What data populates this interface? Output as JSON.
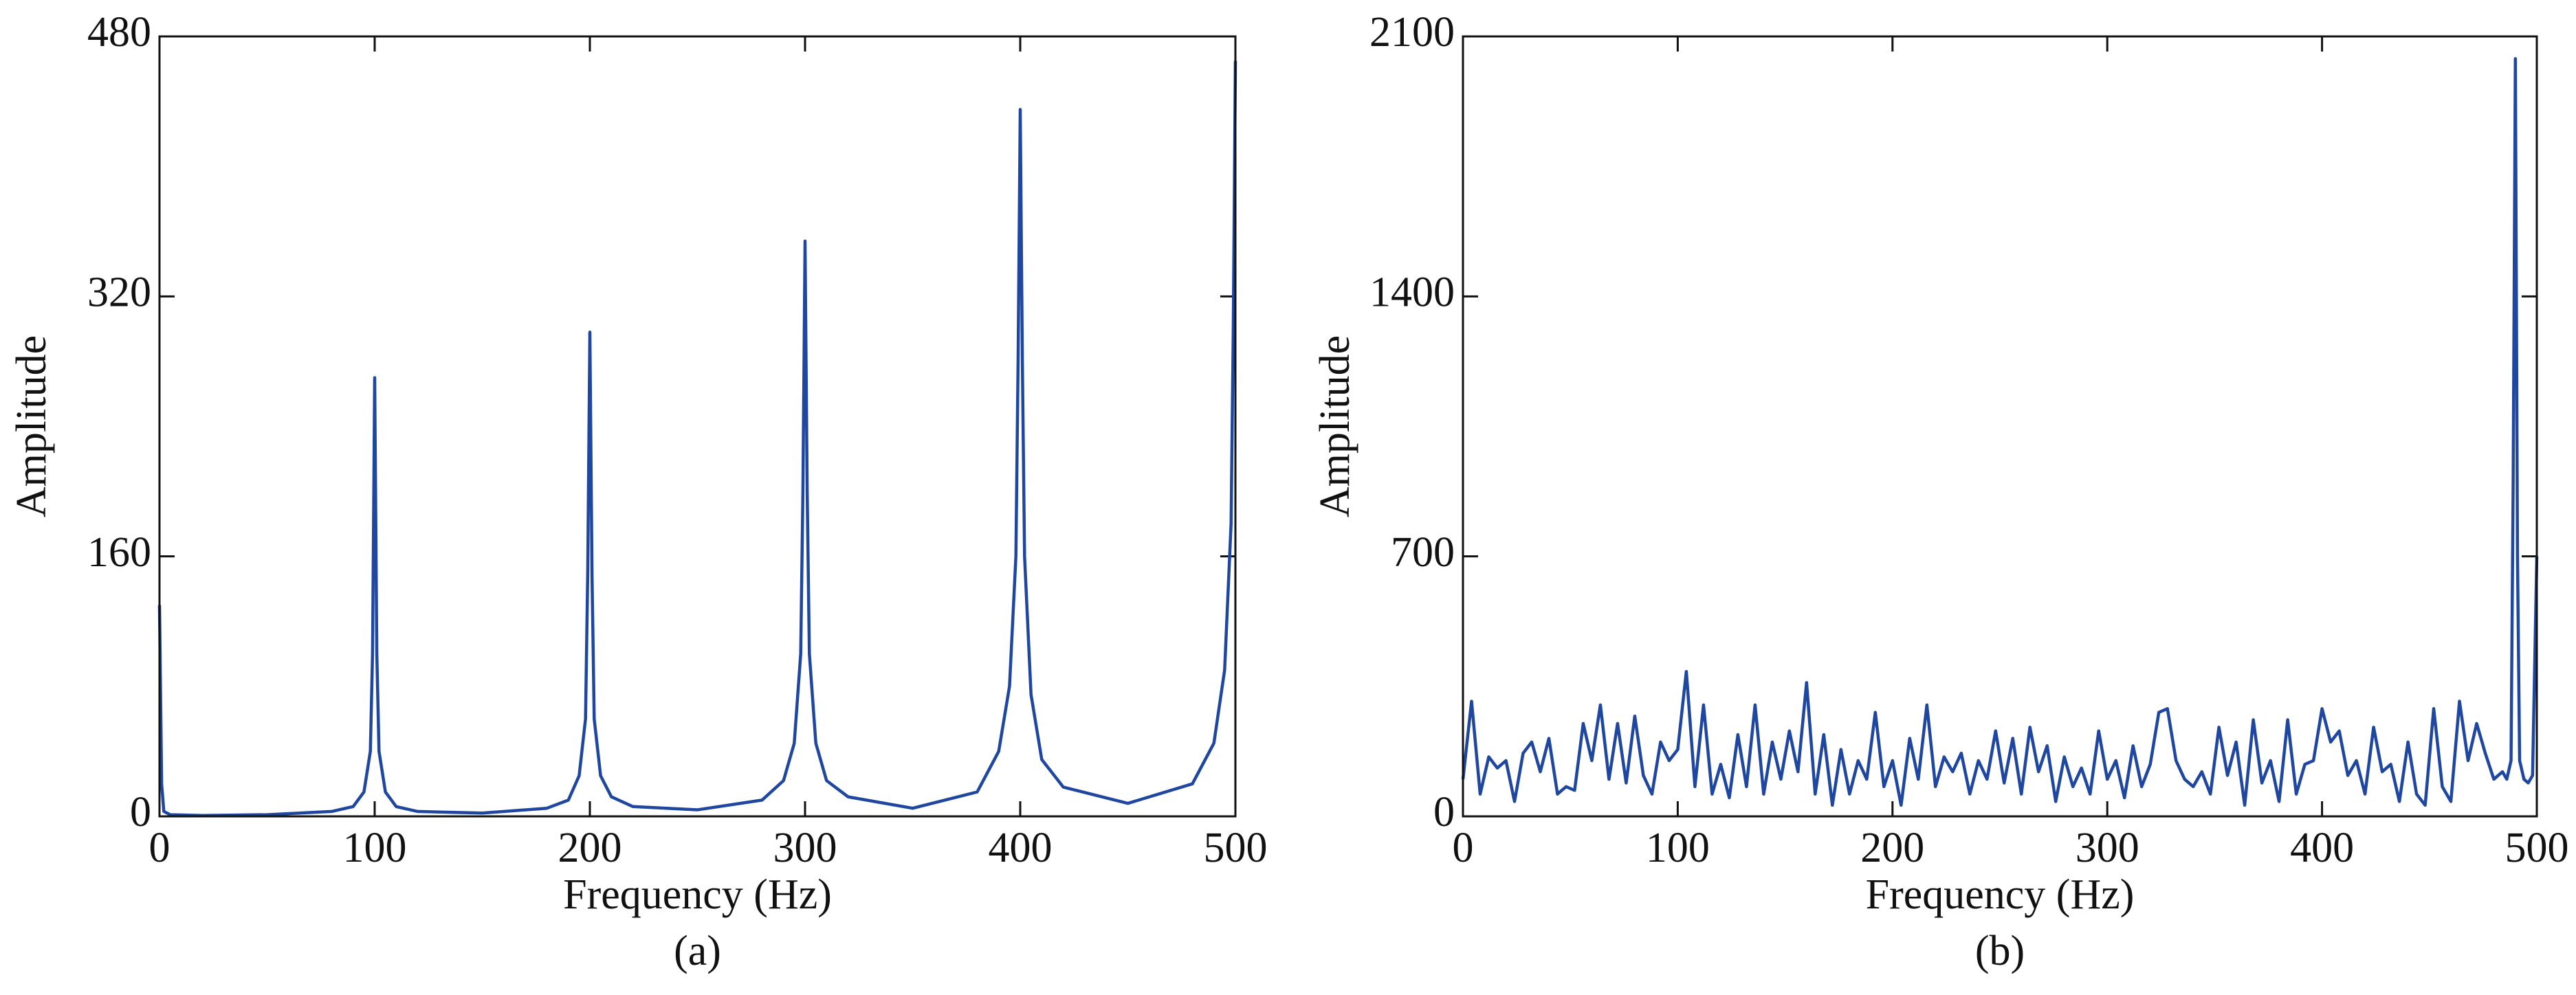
{
  "chart_data": [
    {
      "type": "line",
      "caption": "(a)",
      "xlabel": "Frequency (Hz)",
      "ylabel": "Amplitude",
      "color": "#1f47a0",
      "xlim": [
        0,
        500
      ],
      "ylim": [
        0,
        480
      ],
      "xticks": [
        0,
        100,
        200,
        300,
        400,
        500
      ],
      "yticks": [
        0,
        160,
        320,
        480
      ],
      "x": [
        0,
        1,
        2,
        5,
        20,
        50,
        80,
        90,
        95,
        98,
        99,
        100,
        101,
        102,
        105,
        110,
        120,
        150,
        180,
        190,
        195,
        198,
        199,
        200,
        201,
        202,
        205,
        210,
        220,
        250,
        280,
        290,
        295,
        298,
        299,
        300,
        301,
        302,
        305,
        310,
        320,
        350,
        380,
        390,
        395,
        398,
        399,
        400,
        401,
        402,
        405,
        410,
        420,
        450,
        480,
        490,
        495,
        498,
        499,
        500
      ],
      "values": [
        130,
        20,
        3,
        1,
        0.5,
        1,
        3,
        6,
        15,
        40,
        100,
        270,
        100,
        40,
        15,
        6,
        3,
        2,
        5,
        10,
        25,
        60,
        150,
        298,
        150,
        60,
        25,
        12,
        6,
        4,
        10,
        22,
        45,
        100,
        200,
        354,
        200,
        100,
        45,
        22,
        12,
        5,
        15,
        40,
        80,
        160,
        280,
        435,
        280,
        160,
        75,
        35,
        18,
        8,
        20,
        45,
        90,
        180,
        300,
        465
      ]
    },
    {
      "type": "line",
      "caption": "(b)",
      "xlabel": "Frequency (Hz)",
      "ylabel": "Amplitude",
      "color": "#1f47a0",
      "xlim": [
        0,
        500
      ],
      "ylim": [
        0,
        2100
      ],
      "xticks": [
        0,
        100,
        200,
        300,
        400,
        500
      ],
      "yticks": [
        0,
        700,
        1400,
        2100
      ],
      "x": [
        0,
        4,
        8,
        12,
        16,
        20,
        24,
        28,
        32,
        36,
        40,
        44,
        48,
        52,
        56,
        60,
        64,
        68,
        72,
        76,
        80,
        84,
        88,
        92,
        96,
        100,
        104,
        108,
        112,
        116,
        120,
        124,
        128,
        132,
        136,
        140,
        144,
        148,
        152,
        156,
        160,
        164,
        168,
        172,
        176,
        180,
        184,
        188,
        192,
        196,
        200,
        204,
        208,
        212,
        216,
        220,
        224,
        228,
        232,
        236,
        240,
        244,
        248,
        252,
        256,
        260,
        264,
        268,
        272,
        276,
        280,
        284,
        288,
        292,
        296,
        300,
        304,
        308,
        312,
        316,
        320,
        324,
        328,
        332,
        336,
        340,
        344,
        348,
        352,
        356,
        360,
        364,
        368,
        372,
        376,
        380,
        384,
        388,
        392,
        396,
        400,
        404,
        408,
        412,
        416,
        420,
        424,
        428,
        432,
        436,
        440,
        444,
        448,
        452,
        456,
        460,
        464,
        468,
        472,
        476,
        480,
        484,
        486,
        488,
        489,
        490,
        491,
        492,
        494,
        496,
        498,
        500
      ],
      "values": [
        100,
        310,
        60,
        160,
        130,
        150,
        40,
        170,
        200,
        120,
        210,
        60,
        80,
        70,
        250,
        150,
        300,
        100,
        250,
        90,
        270,
        110,
        60,
        200,
        150,
        180,
        390,
        80,
        300,
        60,
        140,
        50,
        220,
        80,
        300,
        60,
        200,
        100,
        230,
        120,
        360,
        60,
        220,
        30,
        180,
        60,
        150,
        100,
        280,
        80,
        150,
        30,
        210,
        100,
        300,
        80,
        160,
        120,
        170,
        60,
        150,
        100,
        230,
        90,
        210,
        60,
        240,
        120,
        190,
        40,
        160,
        80,
        130,
        60,
        230,
        100,
        150,
        50,
        190,
        80,
        140,
        280,
        290,
        150,
        100,
        80,
        120,
        60,
        240,
        110,
        200,
        30,
        260,
        90,
        150,
        40,
        260,
        60,
        140,
        150,
        290,
        200,
        230,
        110,
        150,
        60,
        240,
        120,
        140,
        40,
        200,
        60,
        30,
        290,
        80,
        40,
        310,
        150,
        250,
        170,
        100,
        120,
        100,
        150,
        900,
        2040,
        700,
        150,
        100,
        90,
        110,
        700
      ]
    }
  ]
}
